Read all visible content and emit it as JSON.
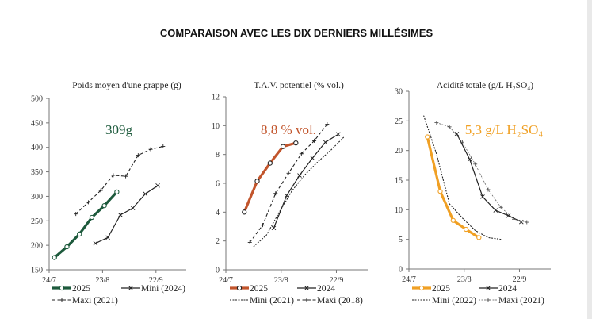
{
  "header": {
    "title": "COMPARAISON AVEC LES DIX DERNIERS MILLÉSIMES",
    "separator": "—"
  },
  "chart_data": [
    {
      "type": "line",
      "title": "Poids moyen d'une grappe (g)",
      "annotation": "309g",
      "annotation_color": "#1d5a3c",
      "xlim": [
        "24/7",
        "9/10"
      ],
      "xticks": [
        "24/7",
        "23/8",
        "22/9"
      ],
      "ylim": [
        150,
        500
      ],
      "yticks": [
        150,
        200,
        250,
        300,
        350,
        400,
        450,
        500
      ],
      "grid": false,
      "legend_placement": "bottom",
      "series": [
        {
          "name": "2025",
          "color": "#1d5a3c",
          "style": "solid-thick",
          "marker": "circle",
          "x": [
            "27/7",
            "3/8",
            "10/8",
            "17/8",
            "24/8",
            "31/8"
          ],
          "y": [
            175,
            197,
            223,
            257,
            281,
            309
          ]
        },
        {
          "name": "Mini (2024)",
          "color": "#222222",
          "style": "solid",
          "marker": "x",
          "x": [
            "19/8",
            "26/8",
            "2/9",
            "9/9",
            "16/9",
            "23/9"
          ],
          "y": [
            204,
            216,
            262,
            276,
            305,
            322
          ]
        },
        {
          "name": "Maxi (2021)",
          "color": "#222222",
          "style": "dashed",
          "marker": "plus",
          "x": [
            "8/8",
            "15/8",
            "22/8",
            "29/8",
            "5/9",
            "12/9",
            "19/9",
            "26/9"
          ],
          "y": [
            264,
            288,
            312,
            343,
            341,
            384,
            396,
            402
          ]
        }
      ]
    },
    {
      "type": "line",
      "title": "T.A.V. potentiel (% vol.)",
      "annotation": "8,8 % vol.",
      "annotation_color": "#c2552c",
      "xlim": [
        "24/7",
        "9/10"
      ],
      "xticks": [
        "24/7",
        "23/8",
        "22/9"
      ],
      "ylim": [
        0,
        12
      ],
      "yticks": [
        0,
        2,
        4,
        6,
        8,
        10,
        12
      ],
      "grid": false,
      "legend_placement": "bottom",
      "series": [
        {
          "name": "2025",
          "color": "#c2552c",
          "style": "solid-thick",
          "marker": "circle",
          "x": [
            "3/8",
            "10/8",
            "17/8",
            "24/8",
            "31/8"
          ],
          "y": [
            4.0,
            6.15,
            7.4,
            8.55,
            8.8
          ]
        },
        {
          "name": "2024",
          "color": "#222222",
          "style": "solid",
          "marker": "x",
          "x": [
            "19/8",
            "26/8",
            "2/9",
            "9/9",
            "16/9",
            "23/9"
          ],
          "y": [
            2.9,
            5.15,
            6.55,
            7.75,
            8.85,
            9.4
          ]
        },
        {
          "name": "Mini (2021)",
          "color": "#222222",
          "style": "dotted",
          "marker": "none",
          "x": [
            "8/8",
            "15/8",
            "22/8",
            "29/8",
            "5/9",
            "12/9",
            "19/9",
            "26/9"
          ],
          "y": [
            1.6,
            2.4,
            4.0,
            5.5,
            6.6,
            7.5,
            8.3,
            9.2
          ]
        },
        {
          "name": "Maxi (2018)",
          "color": "#222222",
          "style": "dashed",
          "marker": "plus",
          "x": [
            "6/8",
            "13/8",
            "20/8",
            "27/8",
            "3/9",
            "10/9",
            "17/9"
          ],
          "y": [
            1.9,
            3.1,
            5.3,
            6.7,
            8.05,
            8.95,
            10.1
          ]
        }
      ]
    },
    {
      "type": "line",
      "title": "Acidité totale (g/L H₂SO₄)",
      "annotation": "5,3 g/L H₂SO₄",
      "annotation_color": "#f0a024",
      "xlim": [
        "24/7",
        "9/10"
      ],
      "xticks": [
        "24/7",
        "23/8",
        "22/9"
      ],
      "ylim": [
        0,
        30
      ],
      "yticks": [
        0,
        5,
        10,
        15,
        20,
        25,
        30
      ],
      "grid": false,
      "legend_placement": "bottom",
      "series": [
        {
          "name": "2025",
          "color": "#f0a024",
          "style": "solid-thick",
          "marker": "circle",
          "x": [
            "3/8",
            "10/8",
            "17/8",
            "24/8",
            "31/8"
          ],
          "y": [
            22.3,
            13.1,
            8.2,
            6.7,
            5.3
          ]
        },
        {
          "name": "2024",
          "color": "#222222",
          "style": "solid",
          "marker": "x",
          "x": [
            "19/8",
            "26/8",
            "2/9",
            "9/9",
            "16/9",
            "23/9"
          ],
          "y": [
            22.8,
            18.5,
            12.2,
            9.9,
            9.0,
            7.95
          ]
        },
        {
          "name": "Mini (2022)",
          "color": "#222222",
          "style": "dotted",
          "marker": "none",
          "x": [
            "1/8",
            "8/8",
            "15/8",
            "22/8",
            "29/8",
            "5/9",
            "12/9"
          ],
          "y": [
            25.9,
            19.4,
            11.0,
            8.6,
            6.5,
            5.3,
            5.0
          ]
        },
        {
          "name": "Maxi (2021)",
          "color": "#555555",
          "style": "dotted-thin",
          "marker": "plus",
          "x": [
            "8/8",
            "15/8",
            "22/8",
            "29/8",
            "5/9",
            "12/9",
            "19/9",
            "26/9"
          ],
          "y": [
            24.7,
            24.0,
            21.4,
            17.7,
            13.4,
            10.4,
            8.4,
            7.9
          ]
        }
      ]
    }
  ]
}
